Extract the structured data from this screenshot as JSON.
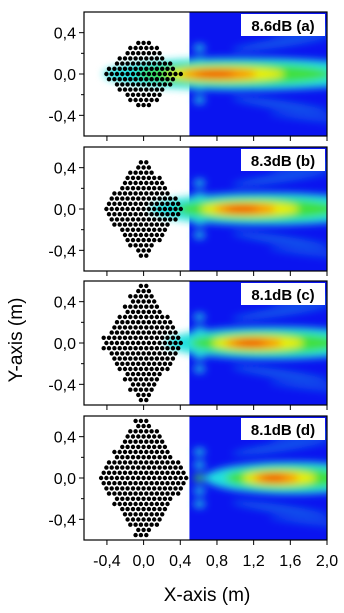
{
  "chart_data": {
    "type": "heatmap",
    "xlabel": "X-axis (m)",
    "ylabel": "Y-axis (m)",
    "xlim": [
      -0.65,
      2.0
    ],
    "ylim": [
      -0.6,
      0.6
    ],
    "x_ticks": [
      "-0,4",
      "0,0",
      "0,4",
      "0,8",
      "1,2",
      "1,6",
      "2,0"
    ],
    "y_ticks": [
      "0,4",
      "0,0",
      "-0,4"
    ],
    "field_region_start_x": 0.5,
    "colors": {
      "background": "#0a14f0",
      "cyan": "#20e0e0",
      "green": "#40e040",
      "yellow": "#f0f000",
      "orange": "#ff8000",
      "red": "#f00000",
      "rods": "#000000"
    },
    "panels": [
      {
        "label": "(a)",
        "gain": "8.6dB",
        "lens_width": 0.85,
        "lens_height": 0.68,
        "hotspot_x": 0.72,
        "hotspot_y": 0.0
      },
      {
        "label": "(b)",
        "gain": "8.3dB",
        "lens_width": 0.9,
        "lens_height": 0.92,
        "hotspot_x": 1.02,
        "hotspot_y": 0.0
      },
      {
        "label": "(c)",
        "gain": "8.1dB",
        "lens_width": 0.9,
        "lens_height": 1.14,
        "hotspot_x": 1.12,
        "hotspot_y": 0.0
      },
      {
        "label": "(d)",
        "gain": "8.1dB",
        "lens_width": 1.0,
        "lens_height": 1.2,
        "hotspot_x": 1.38,
        "hotspot_y": 0.0
      }
    ]
  }
}
